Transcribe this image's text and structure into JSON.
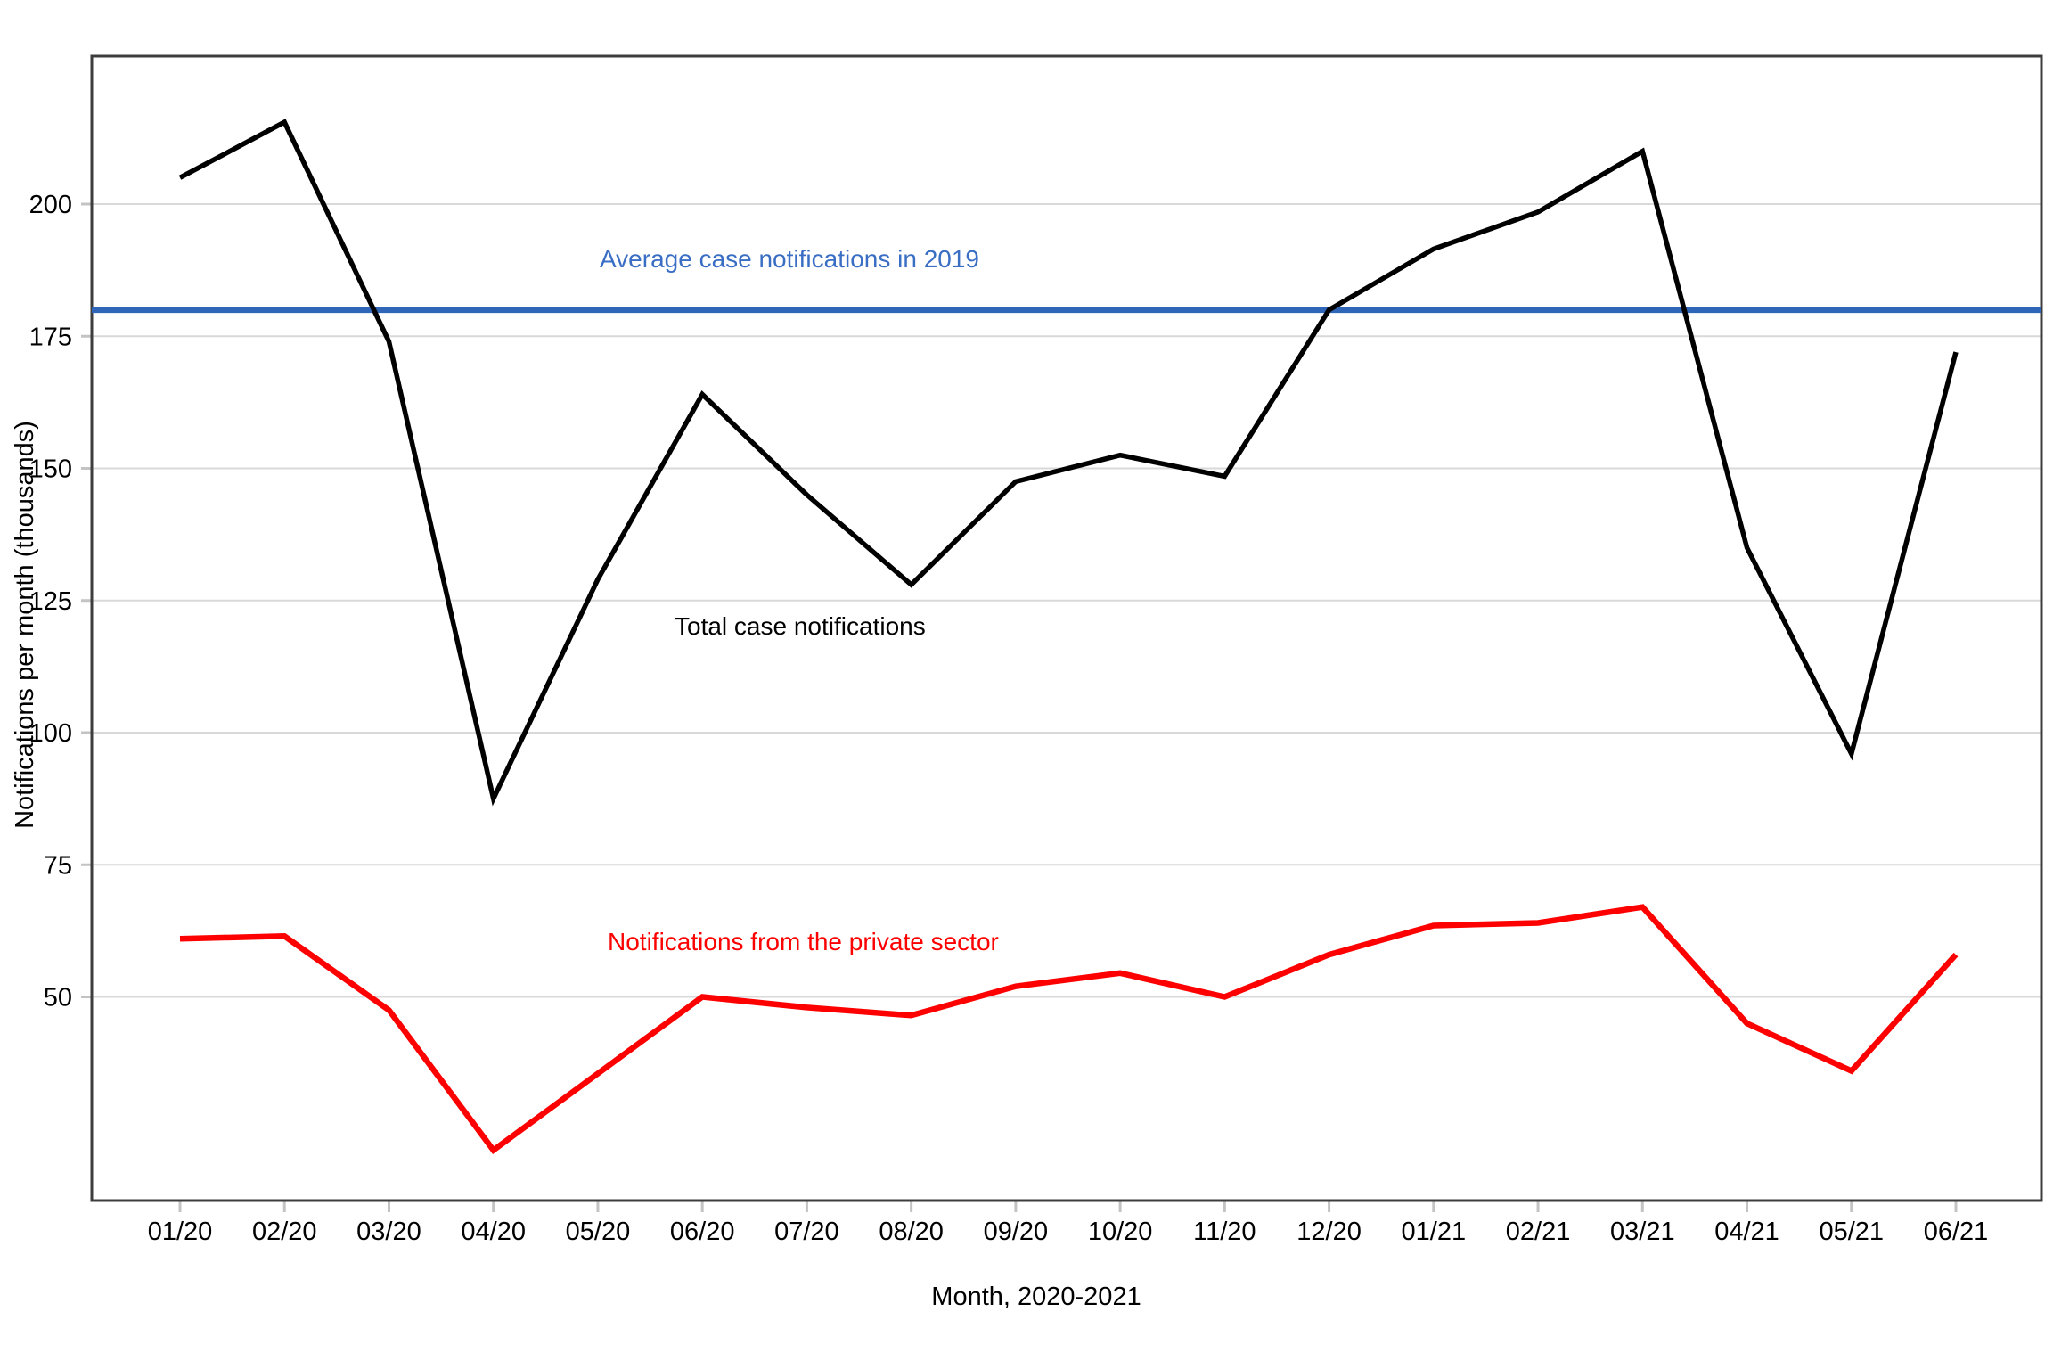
{
  "chart_data": {
    "type": "line",
    "title": "",
    "xlabel": "Month, 2020-2021",
    "ylabel": "Notifications per month (thousands)",
    "x": [
      "01/20",
      "02/20",
      "03/20",
      "04/20",
      "05/20",
      "06/20",
      "07/20",
      "08/20",
      "09/20",
      "10/20",
      "11/20",
      "12/20",
      "01/21",
      "02/21",
      "03/21",
      "04/21",
      "05/21",
      "06/21"
    ],
    "y_ticks": [
      50,
      75,
      100,
      125,
      150,
      175,
      200
    ],
    "ylim": [
      11.5,
      228
    ],
    "grid": "horizontal-only",
    "legend_position": "inline-annotations",
    "series": [
      {
        "name": "Total case notifications",
        "color": "#000000",
        "values": [
          205,
          215.5,
          174,
          87.5,
          129,
          164,
          145,
          128,
          147.5,
          152.5,
          148.5,
          180,
          191.5,
          198.5,
          210,
          135,
          96,
          172
        ]
      },
      {
        "name": "Notifications from the private sector",
        "color": "#fe0000",
        "values": [
          61,
          61.5,
          47.5,
          21,
          35.5,
          50,
          48,
          46.5,
          52,
          54.5,
          50,
          58,
          63.5,
          64,
          67,
          45,
          36,
          58
        ]
      }
    ],
    "reference_line": {
      "label": "Average case notifications in 2019",
      "value": 180,
      "color": "#2f66b8",
      "label_color": "#3a6ec4"
    }
  }
}
